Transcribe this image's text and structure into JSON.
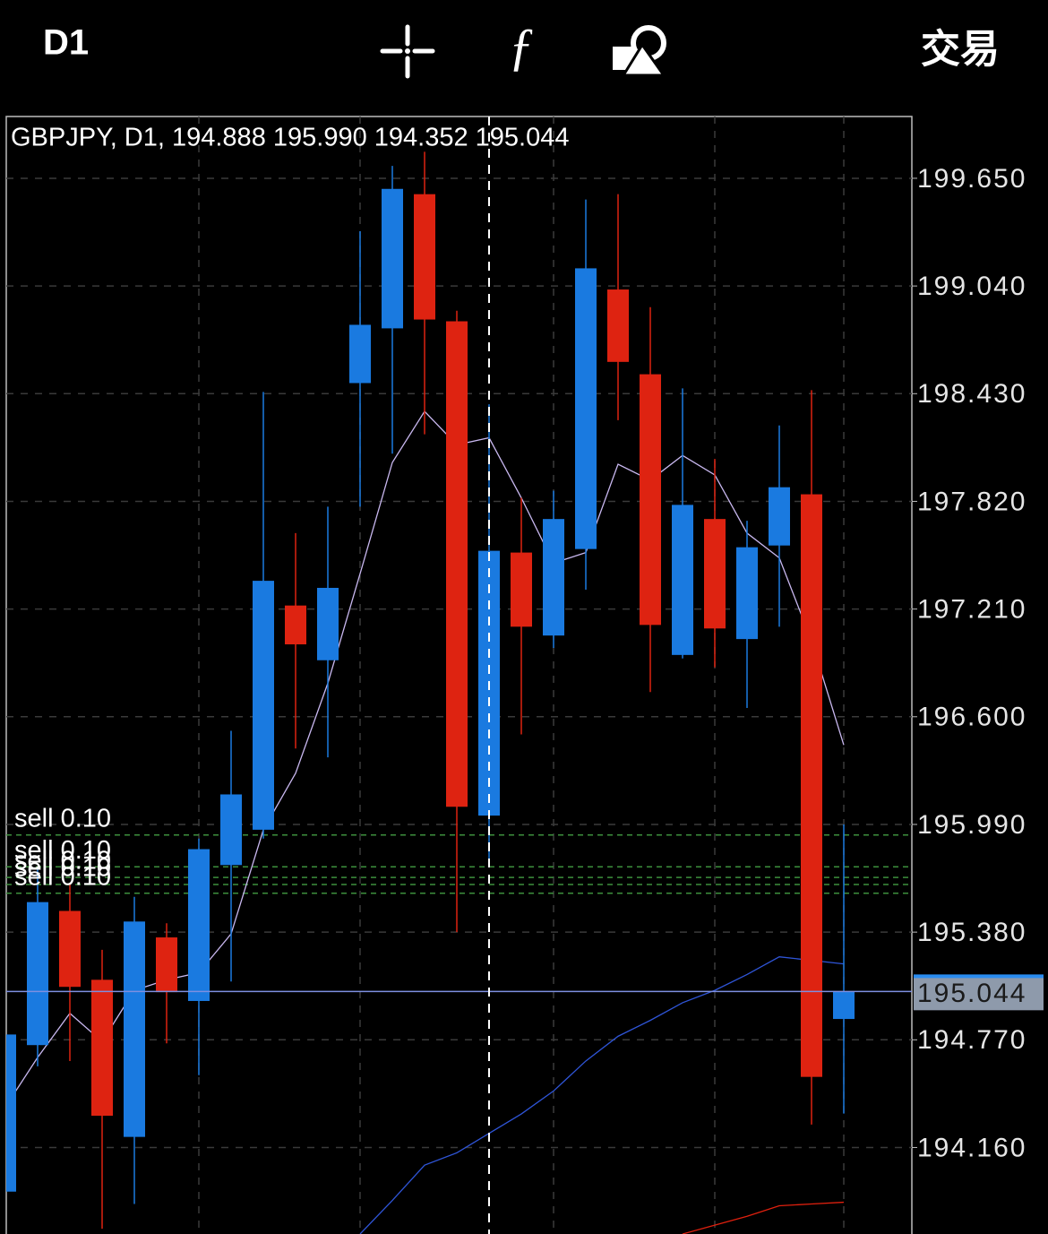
{
  "toolbar": {
    "timeframe": "D1",
    "trade": "交易"
  },
  "chart_data": {
    "type": "candlestick",
    "title": "GBPJPY, D1, 194.888 195.990 194.352 195.044",
    "up_color": "#1a7ae0",
    "down_color": "#de2311",
    "open": [
      193.91,
      194.74,
      195.5,
      195.11,
      194.22,
      195.35,
      194.99,
      195.76,
      195.96,
      197.23,
      196.92,
      198.49,
      198.8,
      199.56,
      198.84,
      196.04,
      197.53,
      197.06,
      197.55,
      199.02,
      198.54,
      196.95,
      197.72,
      197.04,
      197.57,
      197.86,
      194.888
    ],
    "high": [
      194.8,
      195.74,
      195.66,
      195.28,
      195.58,
      195.43,
      195.91,
      196.52,
      198.44,
      197.64,
      197.79,
      199.35,
      199.72,
      199.8,
      198.9,
      198.37,
      197.84,
      197.88,
      199.53,
      199.56,
      198.92,
      198.46,
      198.06,
      197.71,
      198.25,
      198.45,
      195.99
    ],
    "low": [
      193.91,
      194.62,
      194.65,
      193.7,
      193.84,
      194.75,
      194.57,
      195.1,
      195.91,
      196.42,
      196.37,
      197.79,
      198.09,
      198.2,
      195.38,
      195.76,
      196.5,
      196.99,
      197.32,
      198.28,
      196.74,
      196.93,
      196.88,
      196.65,
      197.11,
      194.29,
      194.352
    ],
    "close": [
      194.8,
      195.55,
      195.07,
      194.34,
      195.44,
      195.04,
      195.85,
      196.16,
      197.37,
      197.01,
      197.33,
      198.82,
      199.59,
      198.85,
      196.09,
      197.54,
      197.11,
      197.72,
      199.14,
      198.61,
      197.12,
      197.8,
      197.1,
      197.56,
      197.9,
      194.56,
      195.044
    ],
    "series": [
      {
        "color": "#c9b8f0",
        "values": [
          194.39,
          194.67,
          194.92,
          194.76,
          195.05,
          195.11,
          195.15,
          195.37,
          195.96,
          196.28,
          196.79,
          197.41,
          198.04,
          198.33,
          198.14,
          198.18,
          197.84,
          197.47,
          197.53,
          198.03,
          197.94,
          198.08,
          197.97,
          197.64,
          197.5,
          197.03,
          196.44
        ]
      },
      {
        "color": "#2f55d8",
        "values": [
          null,
          null,
          null,
          null,
          null,
          null,
          null,
          null,
          null,
          null,
          null,
          193.67,
          193.86,
          194.06,
          194.13,
          194.24,
          194.35,
          194.48,
          194.65,
          194.79,
          194.88,
          194.98,
          195.05,
          195.14,
          195.24,
          195.22,
          195.2
        ]
      },
      {
        "color": "#e0200e",
        "values": [
          null,
          null,
          null,
          null,
          null,
          null,
          null,
          null,
          null,
          null,
          null,
          null,
          null,
          null,
          null,
          null,
          null,
          null,
          null,
          null,
          null,
          193.67,
          193.72,
          193.77,
          193.83,
          193.84,
          193.85
        ]
      }
    ],
    "orders": [
      {
        "label": "sell 0.10",
        "price": 195.93
      },
      {
        "label": "sell 0.10",
        "price": 195.75
      },
      {
        "label": "sell 0.10",
        "price": 195.69
      },
      {
        "label": "sell 0.10",
        "price": 195.65
      },
      {
        "label": "sell 0.10",
        "price": 195.6
      }
    ],
    "current_price": 195.044,
    "ylim": [
      193.67,
      200.0
    ],
    "yticks": [
      {
        "value": 199.65,
        "label": "199.650"
      },
      {
        "value": 199.04,
        "label": "199.040"
      },
      {
        "value": 198.43,
        "label": "198.430"
      },
      {
        "value": 197.82,
        "label": "197.820"
      },
      {
        "value": 197.21,
        "label": "197.210"
      },
      {
        "value": 196.6,
        "label": "196.600"
      },
      {
        "value": 195.99,
        "label": "195.990"
      },
      {
        "value": 195.38,
        "label": "195.380"
      },
      {
        "value": 194.77,
        "label": "194.770"
      },
      {
        "value": 194.16,
        "label": "194.160"
      }
    ],
    "grid": true
  }
}
